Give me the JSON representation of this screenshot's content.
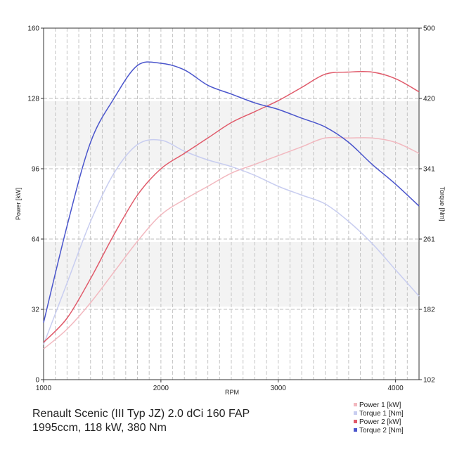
{
  "chart_data": {
    "type": "line",
    "xlabel": "RPM",
    "ylabel_left": "Power [kW]",
    "ylabel_right": "Torque [Nm]",
    "xlim": [
      1000,
      4200
    ],
    "ylim_left": [
      0,
      160
    ],
    "ylim_right": [
      102,
      500
    ],
    "x_ticks": [
      "1000",
      "2000",
      "3000",
      "4000"
    ],
    "y_ticks_left": [
      "0",
      "32",
      "64",
      "96",
      "128",
      "160"
    ],
    "y_ticks_right": [
      "102",
      "182",
      "261",
      "341",
      "420",
      "500"
    ],
    "grid": true,
    "legend_position": "bottom-right",
    "series": [
      {
        "name": "Power 1 [kW]",
        "axis": "left",
        "color": "#f2b8bf",
        "x": [
          1000,
          1200,
          1400,
          1600,
          1800,
          2000,
          2200,
          2400,
          2600,
          2800,
          3000,
          3200,
          3400,
          3600,
          3800,
          4000,
          4200
        ],
        "y": [
          14,
          23,
          35,
          49,
          63,
          75,
          82,
          88,
          94,
          98,
          102,
          106,
          110,
          110,
          110,
          108,
          103
        ]
      },
      {
        "name": "Torque 1 [Nm]",
        "axis": "left",
        "color": "#c8cdf0",
        "x": [
          1000,
          1200,
          1400,
          1600,
          1800,
          2000,
          2200,
          2400,
          2600,
          2800,
          3000,
          3200,
          3400,
          3600,
          3800,
          4000,
          4200
        ],
        "y": [
          16,
          44,
          72,
          94,
          107,
          109,
          104,
          100,
          97,
          93,
          88,
          84,
          80,
          72,
          62,
          50,
          38
        ]
      },
      {
        "name": "Power 2 [kW]",
        "axis": "left",
        "color": "#e05a6a",
        "x": [
          1000,
          1200,
          1400,
          1600,
          1800,
          2000,
          2200,
          2400,
          2600,
          2800,
          3000,
          3200,
          3400,
          3600,
          3800,
          4000,
          4200
        ],
        "y": [
          17,
          28,
          46,
          66,
          84,
          96,
          103,
          110,
          117,
          122,
          127,
          133,
          139,
          140,
          140,
          137,
          131
        ]
      },
      {
        "name": "Torque 2 [Nm]",
        "axis": "left",
        "color": "#4a55cc",
        "x": [
          1000,
          1200,
          1400,
          1600,
          1800,
          2000,
          2200,
          2400,
          2600,
          2800,
          3000,
          3200,
          3400,
          3600,
          3800,
          4000,
          4200
        ],
        "y": [
          26,
          70,
          108,
          128,
          143,
          144,
          141,
          134,
          130,
          126,
          123,
          119,
          115,
          108,
          98,
          89,
          79
        ]
      }
    ]
  },
  "caption": {
    "line1": "Renault Scenic (III Typ JZ) 2.0 dCi 160 FAP",
    "line2": "1995ccm, 118 kW, 380 Nm"
  }
}
